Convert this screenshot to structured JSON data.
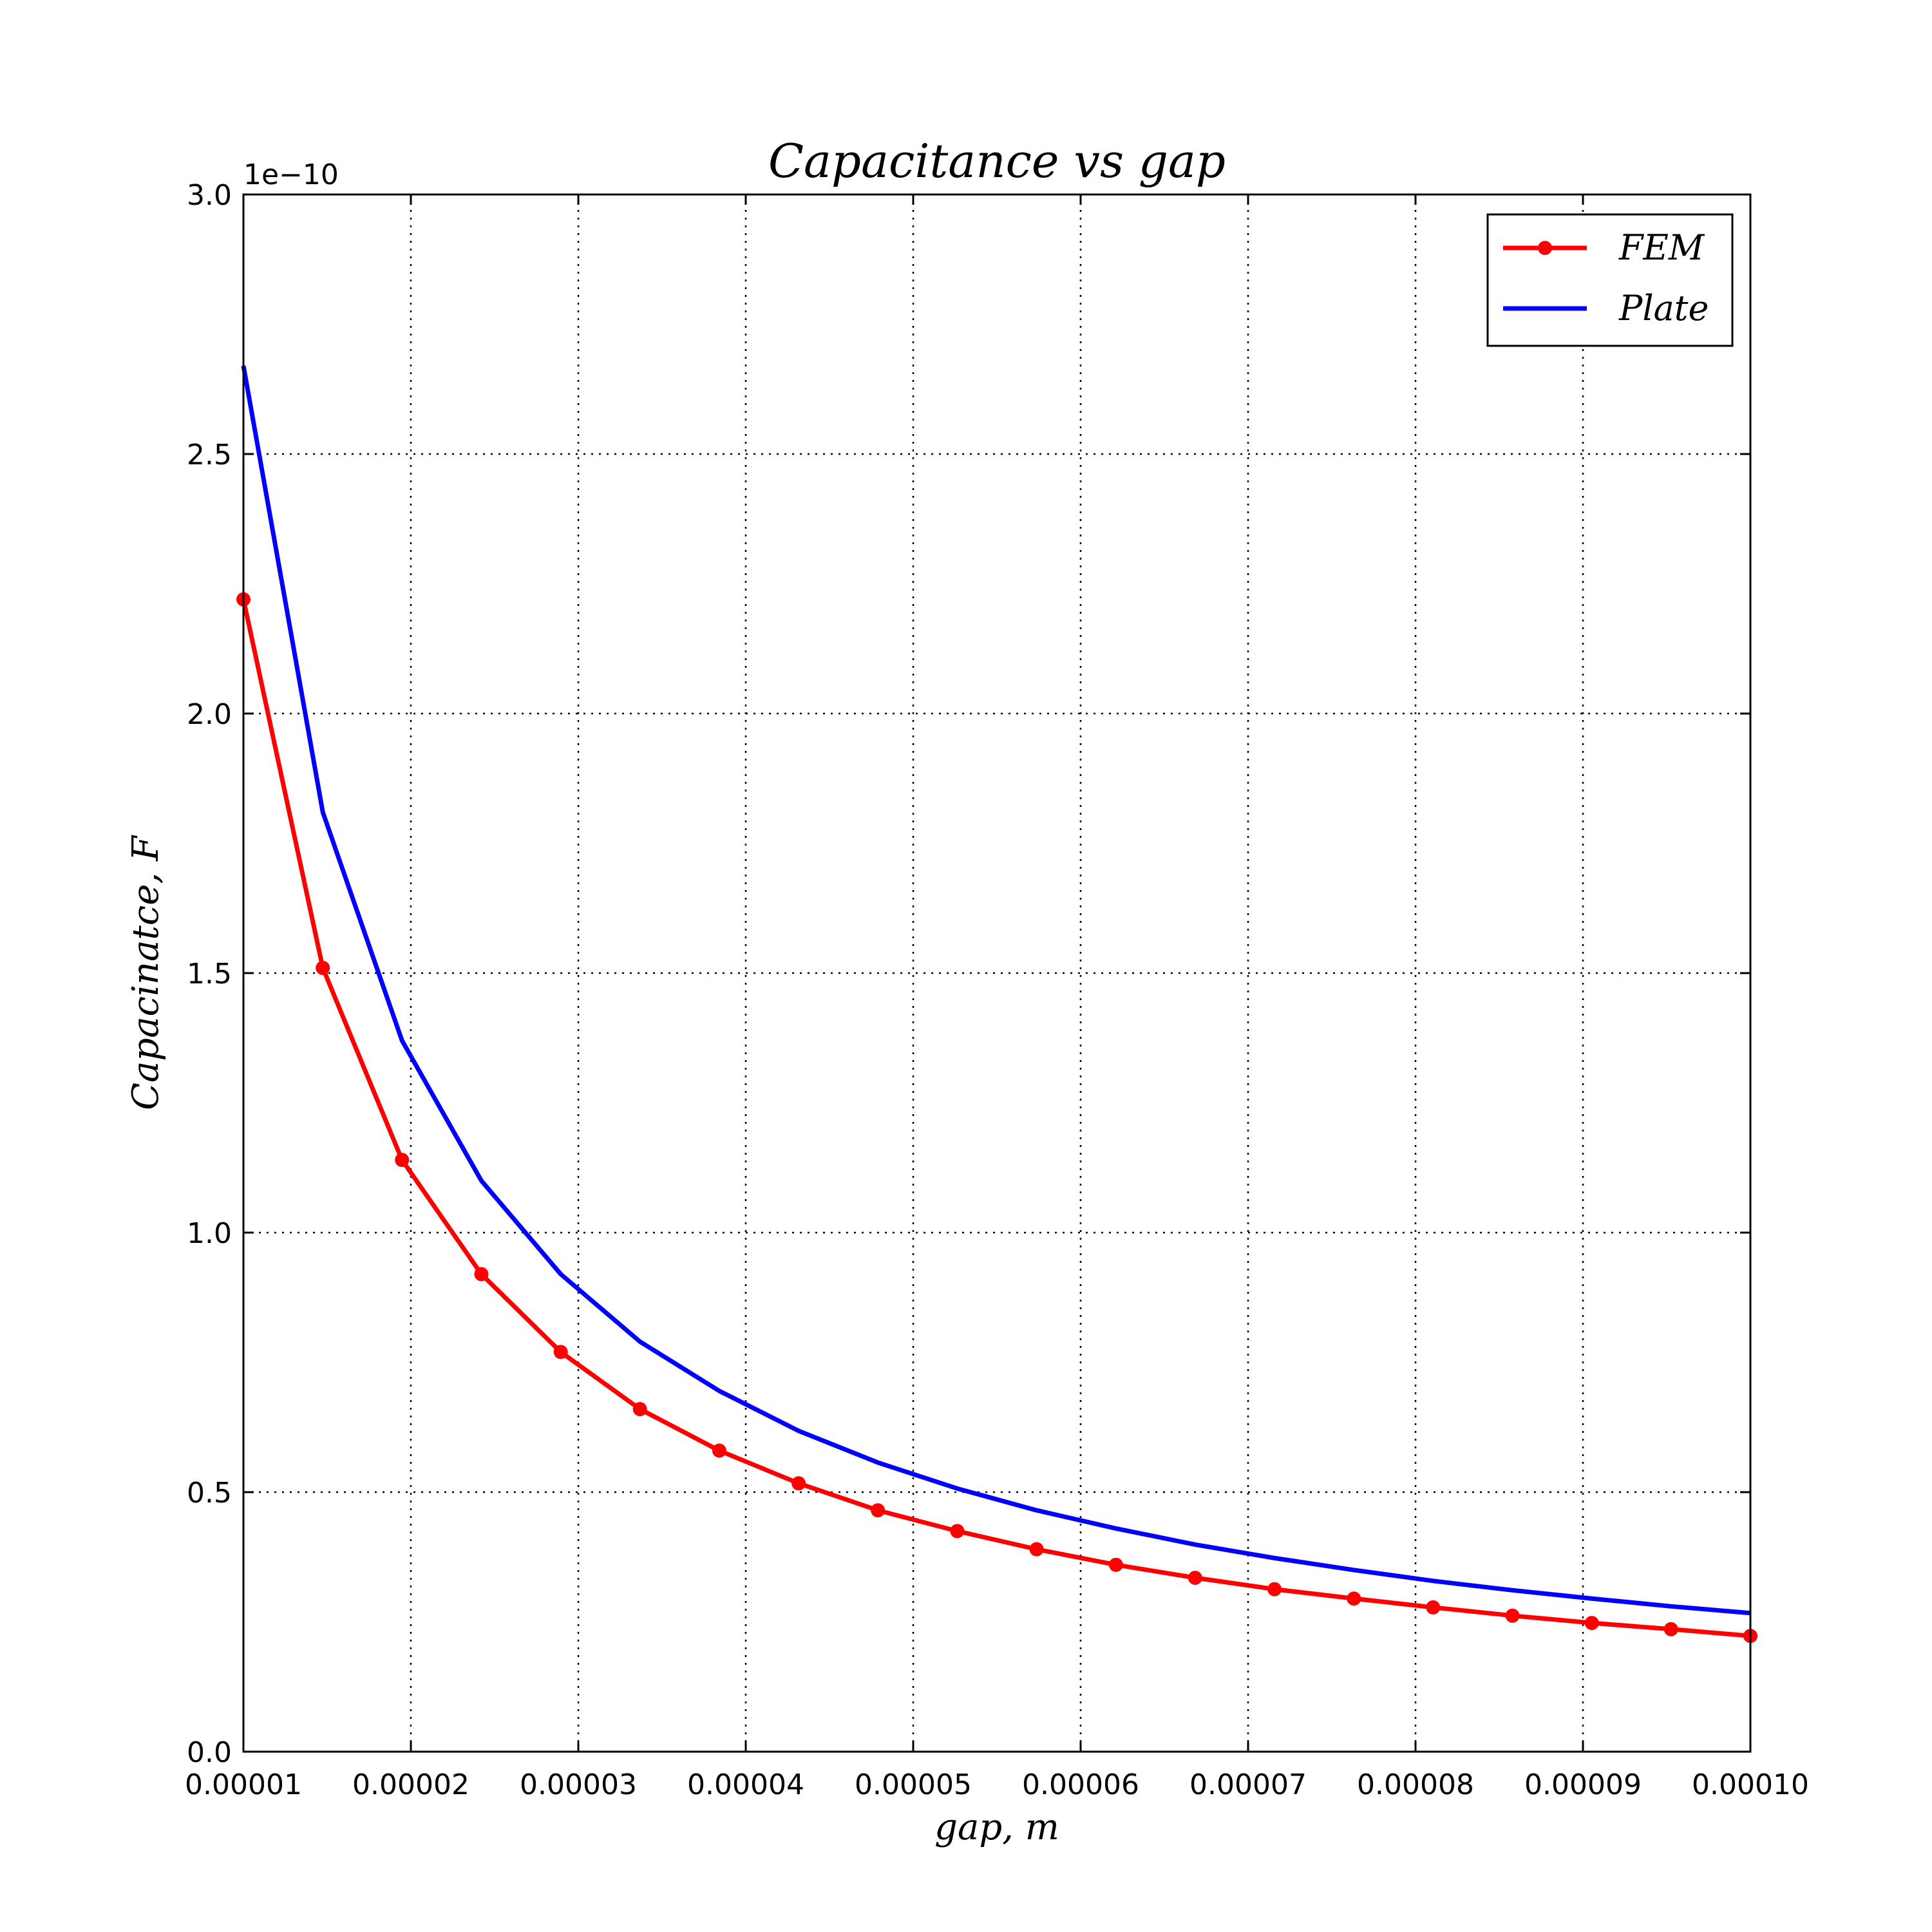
{
  "chart_data": {
    "type": "line",
    "title": "Capacitance vs gap",
    "xlabel": "gap, m",
    "ylabel": "Capacinatce, F",
    "y_offset_label": "1e−10",
    "xlim": [
      1e-05,
      0.0001
    ],
    "ylim": [
      0.0,
      3.0
    ],
    "grid": true,
    "legend_position": "top-right",
    "x_ticks": [
      1e-05,
      2e-05,
      3e-05,
      4e-05,
      5e-05,
      6e-05,
      7e-05,
      8e-05,
      9e-05,
      0.0001
    ],
    "x_tick_labels": [
      "0.00001",
      "0.00002",
      "0.00003",
      "0.00004",
      "0.00005",
      "0.00006",
      "0.00007",
      "0.00008",
      "0.00009",
      "0.00010"
    ],
    "y_ticks": [
      0.0,
      0.5,
      1.0,
      1.5,
      2.0,
      2.5,
      3.0
    ],
    "y_tick_labels": [
      "0.0",
      "0.5",
      "1.0",
      "1.5",
      "2.0",
      "2.5",
      "3.0"
    ],
    "x": [
      1e-05,
      1.474e-05,
      1.947e-05,
      2.421e-05,
      2.895e-05,
      3.368e-05,
      3.842e-05,
      4.316e-05,
      4.789e-05,
      5.263e-05,
      5.737e-05,
      6.211e-05,
      6.684e-05,
      7.158e-05,
      7.632e-05,
      8.105e-05,
      8.579e-05,
      9.053e-05,
      9.526e-05,
      0.0001
    ],
    "series": [
      {
        "name": "FEM",
        "color": "#ff0000",
        "marker": "circle",
        "values": [
          2.22,
          1.51,
          1.14,
          0.92,
          0.77,
          0.66,
          0.58,
          0.517,
          0.465,
          0.425,
          0.39,
          0.36,
          0.335,
          0.313,
          0.295,
          0.278,
          0.262,
          0.248,
          0.236,
          0.223
        ]
      },
      {
        "name": "Plate",
        "color": "#0000ff",
        "marker": "none",
        "values": [
          2.67,
          1.81,
          1.37,
          1.1,
          0.92,
          0.79,
          0.695,
          0.618,
          0.557,
          0.507,
          0.465,
          0.43,
          0.399,
          0.373,
          0.35,
          0.329,
          0.311,
          0.295,
          0.28,
          0.267
        ]
      }
    ]
  }
}
